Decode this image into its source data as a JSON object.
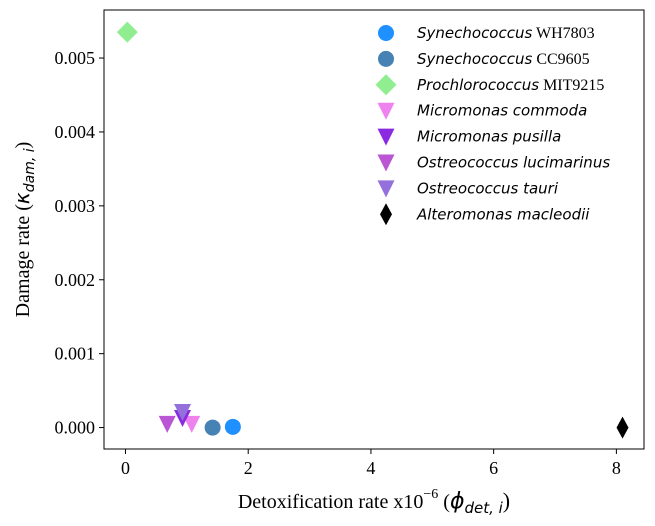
{
  "chart_data": {
    "type": "scatter",
    "xlabel": {
      "prefix": "Detoxification rate x10",
      "exponent": "−6",
      "open": " (",
      "symbol": "ϕ",
      "subscript": "det, i",
      "close": ")"
    },
    "ylabel": {
      "prefix": "Damage rate (",
      "symbol": "κ",
      "subscript": "dam, i",
      "close": ")"
    },
    "xlim": [
      -0.35,
      8.45
    ],
    "ylim": [
      -0.00029,
      0.00565
    ],
    "xticks": [
      {
        "value": 0,
        "label": "0"
      },
      {
        "value": 2,
        "label": "2"
      },
      {
        "value": 4,
        "label": "4"
      },
      {
        "value": 6,
        "label": "6"
      },
      {
        "value": 8,
        "label": "8"
      }
    ],
    "yticks": [
      {
        "value": 0.0,
        "label": "0.000"
      },
      {
        "value": 0.001,
        "label": "0.001"
      },
      {
        "value": 0.002,
        "label": "0.002"
      },
      {
        "value": 0.003,
        "label": "0.003"
      },
      {
        "value": 0.004,
        "label": "0.004"
      },
      {
        "value": 0.005,
        "label": "0.005"
      }
    ],
    "grid": false,
    "legend_position": "top-right",
    "series": [
      {
        "genus": "Synechococcus",
        "strain": "WH7803",
        "marker": "circle",
        "color": "#1e90ff",
        "points": [
          {
            "x": 1.75,
            "y": 1e-05
          }
        ]
      },
      {
        "genus": "Synechococcus",
        "strain": "CC9605",
        "marker": "circle",
        "color": "#4682b4",
        "points": [
          {
            "x": 1.42,
            "y": 0.0
          }
        ]
      },
      {
        "genus": "Prochlorococcus",
        "strain": "MIT9215",
        "marker": "diamond",
        "color": "#90ee90",
        "points": [
          {
            "x": 0.03,
            "y": 0.00535
          }
        ]
      },
      {
        "genus": "Micromonas commoda",
        "strain": "",
        "marker": "triangle-down",
        "color": "#ee82ee",
        "points": [
          {
            "x": 1.08,
            "y": 5e-05
          }
        ]
      },
      {
        "genus": "Micromonas pusilla",
        "strain": "",
        "marker": "triangle-down",
        "color": "#8a2be2",
        "points": [
          {
            "x": 0.93,
            "y": 0.00013
          }
        ]
      },
      {
        "genus": "Ostreococcus lucimarinus",
        "strain": "",
        "marker": "triangle-down",
        "color": "#ba55d3",
        "points": [
          {
            "x": 0.68,
            "y": 5e-05
          }
        ]
      },
      {
        "genus": "Ostreococcus tauri",
        "strain": "",
        "marker": "triangle-down",
        "color": "#9370db",
        "points": [
          {
            "x": 0.93,
            "y": 0.00021
          }
        ]
      },
      {
        "genus": "Alteromonas macleodii",
        "strain": "",
        "marker": "thin-diamond",
        "color": "#000000",
        "points": [
          {
            "x": 8.1,
            "y": 0.0
          }
        ]
      }
    ]
  }
}
